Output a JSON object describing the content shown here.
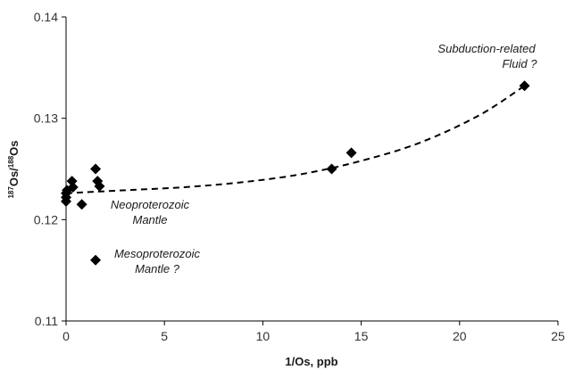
{
  "chart_data": {
    "type": "scatter",
    "title": "",
    "xlabel": "1/Os, ppb",
    "ylabel_sup_a": "187",
    "ylabel_mid": "Os/",
    "ylabel_sup_b": "188",
    "ylabel_end": "Os",
    "xlim": [
      0,
      25
    ],
    "ylim": [
      0.11,
      0.14
    ],
    "x_ticks": [
      "0",
      "5",
      "10",
      "15",
      "20",
      "25"
    ],
    "y_ticks": [
      "0.11",
      "0.12",
      "0.13",
      "0.14"
    ],
    "grid": false,
    "legend": "none",
    "marker": "diamond",
    "marker_color": "#000000",
    "points": [
      {
        "x": 0.0,
        "y": 0.1218
      },
      {
        "x": 0.0,
        "y": 0.1222
      },
      {
        "x": 0.0,
        "y": 0.1226
      },
      {
        "x": 0.05,
        "y": 0.1229
      },
      {
        "x": 0.3,
        "y": 0.1238
      },
      {
        "x": 0.35,
        "y": 0.1232
      },
      {
        "x": 0.8,
        "y": 0.1215
      },
      {
        "x": 1.5,
        "y": 0.125
      },
      {
        "x": 1.6,
        "y": 0.1238
      },
      {
        "x": 1.7,
        "y": 0.1233
      },
      {
        "x": 1.5,
        "y": 0.116
      },
      {
        "x": 13.5,
        "y": 0.125
      },
      {
        "x": 14.5,
        "y": 0.1266
      },
      {
        "x": 23.3,
        "y": 0.1332
      }
    ],
    "trend": {
      "style": "dashed",
      "color": "#000000",
      "points": [
        {
          "x": 0.0,
          "y": 0.1226
        },
        {
          "x": 3.0,
          "y": 0.1229
        },
        {
          "x": 6.0,
          "y": 0.1232
        },
        {
          "x": 9.0,
          "y": 0.1237
        },
        {
          "x": 12.0,
          "y": 0.1245
        },
        {
          "x": 15.0,
          "y": 0.1258
        },
        {
          "x": 18.0,
          "y": 0.1276
        },
        {
          "x": 21.0,
          "y": 0.1303
        },
        {
          "x": 23.3,
          "y": 0.1332
        }
      ]
    },
    "annotations": [
      {
        "line1": "Subduction-related",
        "line2": "Fluid ?"
      },
      {
        "line1": "Neoproterozoic",
        "line2": "Mantle"
      },
      {
        "line1": "Mesoproterozoic",
        "line2": "Mantle ?"
      }
    ]
  }
}
